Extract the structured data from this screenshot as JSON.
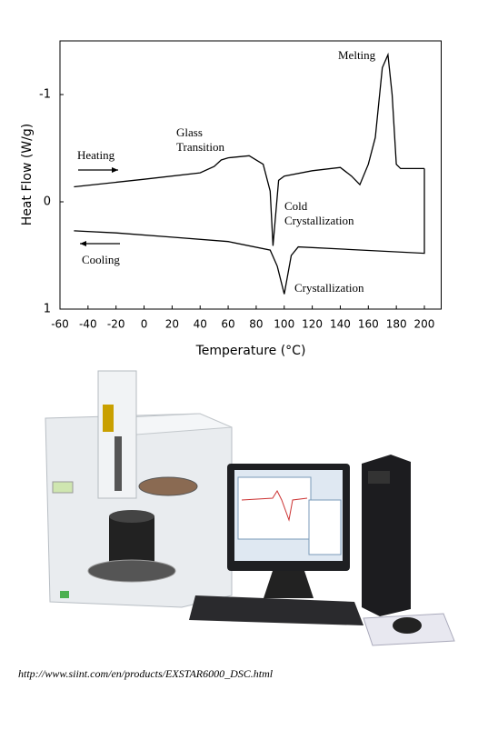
{
  "chart_data": {
    "type": "line",
    "xlabel": "Temperature (°C)",
    "ylabel": "Heat Flow (W/g)",
    "xlim": [
      -60,
      212
    ],
    "xticks": [
      -60,
      -40,
      -20,
      0,
      20,
      40,
      60,
      80,
      100,
      120,
      140,
      160,
      180,
      200
    ],
    "ylim": [
      1,
      -1.5
    ],
    "yticks": [
      -1,
      0,
      1
    ],
    "series": [
      {
        "color": "#000000",
        "x": [
          -50,
          0,
          40,
          50,
          55,
          60,
          75,
          85,
          90,
          92,
          96,
          100,
          120,
          140,
          148,
          154,
          160,
          165,
          170,
          174,
          177,
          180,
          183,
          200
        ],
        "values": [
          -0.14,
          -0.21,
          -0.27,
          -0.33,
          -0.39,
          -0.41,
          -0.43,
          -0.35,
          -0.1,
          0.41,
          -0.2,
          -0.24,
          -0.29,
          -0.32,
          -0.24,
          -0.16,
          -0.35,
          -0.6,
          -1.25,
          -1.37,
          -1.0,
          -0.35,
          -0.31,
          -0.31
        ]
      },
      {
        "color": "#000000",
        "x": [
          200,
          200,
          140,
          110,
          105,
          100,
          95,
          90,
          60,
          20,
          -20,
          -50
        ],
        "values": [
          -0.31,
          0.48,
          0.44,
          0.42,
          0.5,
          0.86,
          0.6,
          0.45,
          0.37,
          0.33,
          0.29,
          0.27
        ]
      }
    ],
    "annotations": [
      [
        "Heating"
      ],
      [
        "Glass",
        "Transition"
      ],
      [
        "Melting"
      ],
      [
        "Cold",
        "Crystallization"
      ],
      [
        "Cooling"
      ],
      [
        "Crystallization"
      ]
    ]
  },
  "caption": "http://www.siint.com/en/products/EXSTAR6000_DSC.html"
}
